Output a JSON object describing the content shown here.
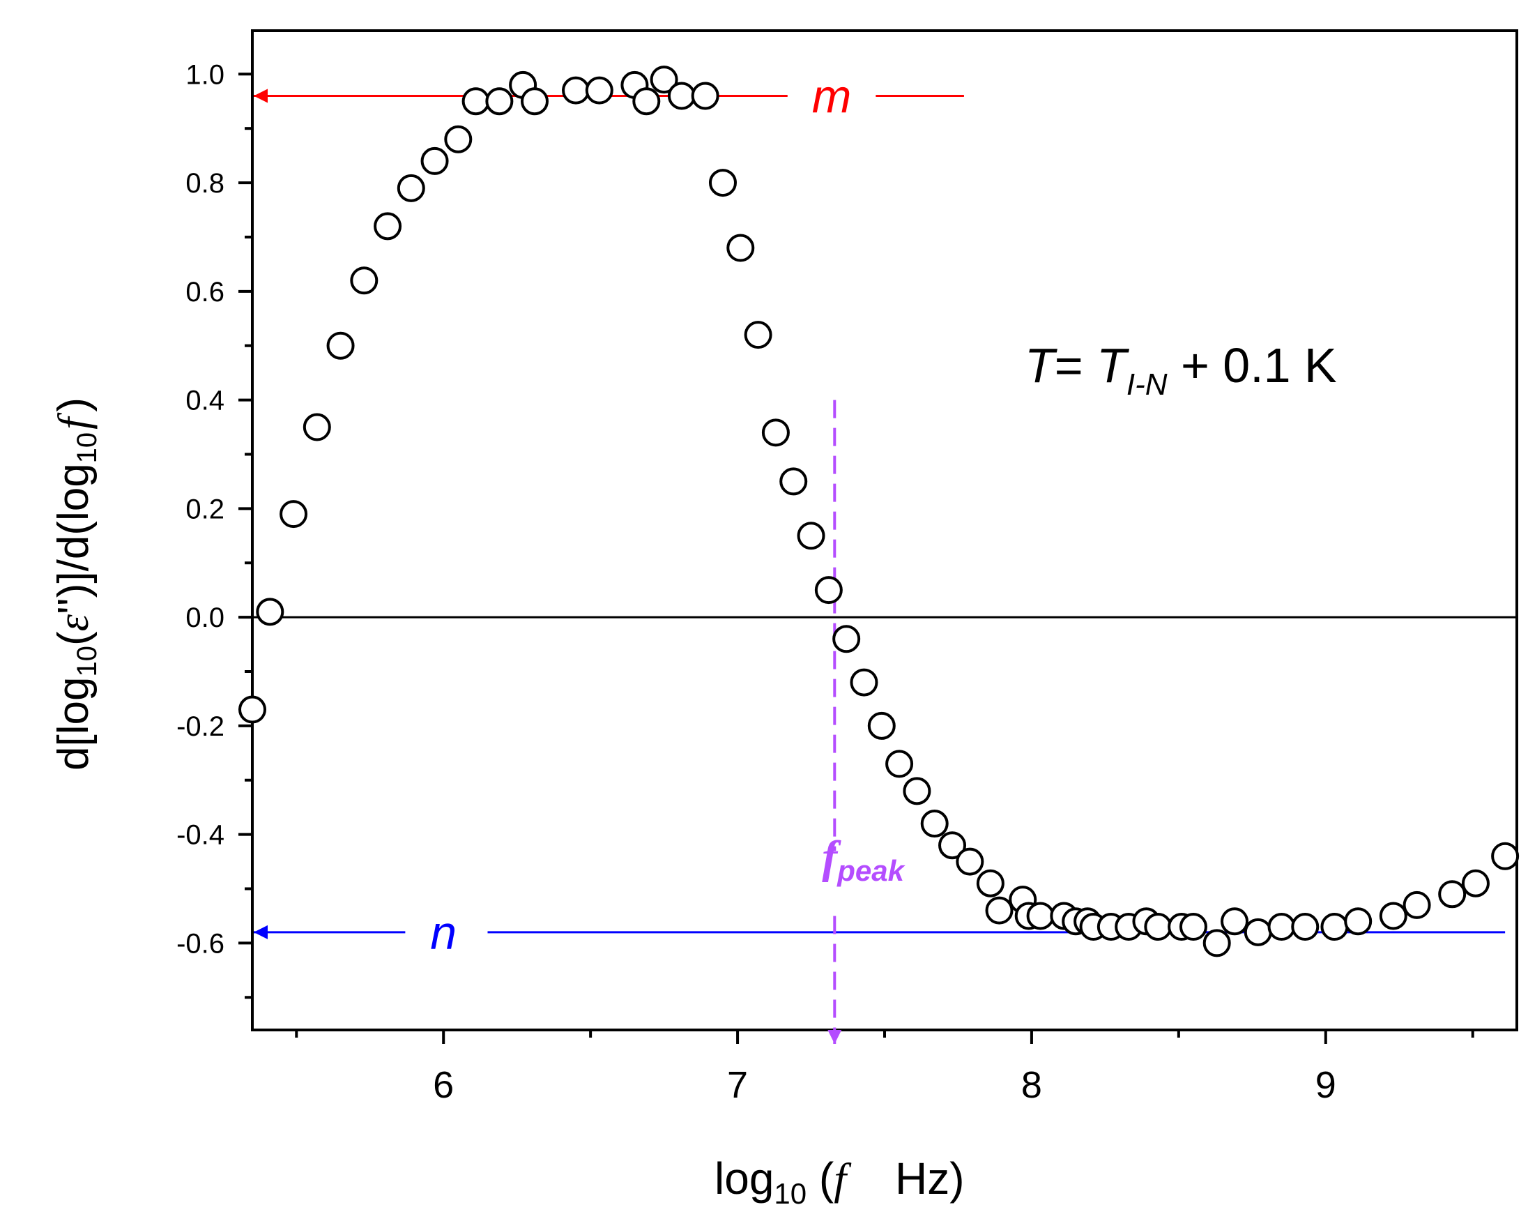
{
  "chart_data": {
    "type": "scatter",
    "title": "",
    "xlabel": {
      "prefix": "log",
      "sub": "10",
      "open": " (",
      "var": "f",
      "unit": "Hz)"
    },
    "ylabel": {
      "a": "d[log",
      "sub1": "10",
      "b": "(",
      "eps": "ε",
      "c": "'')]/d(log",
      "sub2": "10",
      "d": "f",
      "e": ")"
    },
    "xlim": [
      5.35,
      9.65
    ],
    "ylim": [
      -0.76,
      1.08
    ],
    "xticks": [
      6,
      7,
      8,
      9
    ],
    "xtick_labels": [
      "6",
      "7",
      "8",
      "9"
    ],
    "xminor": [
      5.5,
      6.5,
      7.5,
      8.5,
      9.5
    ],
    "yticks": [
      -0.6,
      -0.4,
      -0.2,
      0.0,
      0.2,
      0.4,
      0.6,
      0.8,
      1.0
    ],
    "ytick_labels": [
      "-0.6",
      "-0.4",
      "-0.2",
      "0.0",
      "0.2",
      "0.4",
      "0.6",
      "0.8",
      "1.0"
    ],
    "yminor": [
      -0.7,
      -0.5,
      -0.3,
      -0.1,
      0.1,
      0.3,
      0.5,
      0.7,
      0.9
    ],
    "zero_line": 0.0,
    "series": [
      {
        "name": "derivative",
        "marker": "open-circle",
        "color": "#000000",
        "x": [
          5.35,
          5.41,
          5.49,
          5.57,
          5.65,
          5.73,
          5.81,
          5.89,
          5.97,
          6.05,
          6.11,
          6.19,
          6.27,
          6.31,
          6.45,
          6.53,
          6.65,
          6.69,
          6.75,
          6.81,
          6.89,
          6.95,
          7.01,
          7.07,
          7.13,
          7.19,
          7.25,
          7.31,
          7.37,
          7.43,
          7.49,
          7.55,
          7.61,
          7.67,
          7.73,
          7.79,
          7.86,
          7.89,
          7.97,
          7.99,
          8.03,
          8.11,
          8.15,
          8.19,
          8.21,
          8.27,
          8.33,
          8.39,
          8.43,
          8.51,
          8.55,
          8.63,
          8.69,
          8.77,
          8.85,
          8.93,
          9.03,
          9.11,
          9.23,
          9.31,
          9.43,
          9.51,
          9.61
        ],
        "y": [
          -0.17,
          0.01,
          0.19,
          0.35,
          0.5,
          0.62,
          0.72,
          0.79,
          0.84,
          0.88,
          0.95,
          0.95,
          0.98,
          0.95,
          0.97,
          0.97,
          0.98,
          0.95,
          0.99,
          0.96,
          0.96,
          0.8,
          0.68,
          0.52,
          0.34,
          0.25,
          0.15,
          0.05,
          -0.04,
          -0.12,
          -0.2,
          -0.27,
          -0.32,
          -0.38,
          -0.42,
          -0.45,
          -0.49,
          -0.54,
          -0.52,
          -0.55,
          -0.55,
          -0.55,
          -0.56,
          -0.56,
          -0.57,
          -0.57,
          -0.57,
          -0.56,
          -0.57,
          -0.57,
          -0.57,
          -0.6,
          -0.56,
          -0.58,
          -0.57,
          -0.57,
          -0.57,
          -0.56,
          -0.55,
          -0.53,
          -0.51,
          -0.49,
          -0.44
        ]
      }
    ],
    "annotations": {
      "m": {
        "label": "m",
        "color": "#ff0000",
        "y": 0.96,
        "x_from": 7.77,
        "x_to": 5.35
      },
      "n": {
        "label": "n",
        "color": "#0000ff",
        "y": -0.58,
        "x_from": 9.61,
        "x_to": 5.35
      },
      "fpeak": {
        "label": "f",
        "sub": "peak",
        "color": "#b44dff",
        "x": 7.33,
        "y_from": 0.4,
        "y_to": -0.76
      },
      "temperature": {
        "T": "T",
        "eq": "= ",
        "T2": "T",
        "sub": "I-N",
        "rest": " + 0.1 K"
      }
    }
  }
}
